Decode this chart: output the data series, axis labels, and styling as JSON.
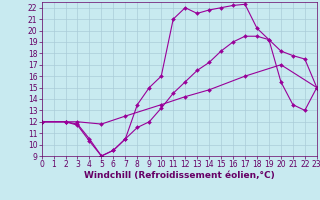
{
  "xlabel": "Windchill (Refroidissement éolien,°C)",
  "xlim": [
    0,
    23
  ],
  "ylim": [
    9,
    22.5
  ],
  "xticks": [
    0,
    1,
    2,
    3,
    4,
    5,
    6,
    7,
    8,
    9,
    10,
    11,
    12,
    13,
    14,
    15,
    16,
    17,
    18,
    19,
    20,
    21,
    22,
    23
  ],
  "yticks": [
    9,
    10,
    11,
    12,
    13,
    14,
    15,
    16,
    17,
    18,
    19,
    20,
    21,
    22
  ],
  "bg_color": "#c8eaf0",
  "line_color": "#990099",
  "line1_x": [
    0,
    2,
    3,
    5,
    7,
    10,
    12,
    14,
    17,
    20,
    23
  ],
  "line1_y": [
    12,
    12,
    12,
    11.8,
    12.5,
    13.5,
    14.2,
    14.8,
    16.0,
    17.0,
    15.0
  ],
  "line2_x": [
    0,
    2,
    3,
    4,
    5,
    6,
    7,
    8,
    9,
    10,
    11,
    12,
    13,
    14,
    15,
    16,
    17,
    18,
    19,
    20,
    21,
    22,
    23
  ],
  "line2_y": [
    12,
    12,
    11.7,
    10.3,
    9.0,
    9.5,
    10.5,
    13.5,
    15.0,
    16.0,
    21.0,
    22.0,
    21.5,
    21.8,
    22.0,
    22.2,
    22.3,
    20.2,
    19.2,
    18.2,
    17.8,
    17.5,
    15.0
  ],
  "line3_x": [
    0,
    2,
    3,
    4,
    5,
    6,
    7,
    8,
    9,
    10,
    11,
    12,
    13,
    14,
    15,
    16,
    17,
    18,
    19,
    20,
    21,
    22,
    23
  ],
  "line3_y": [
    12,
    12,
    11.8,
    10.5,
    9.0,
    9.5,
    10.5,
    11.5,
    12.0,
    13.2,
    14.5,
    15.5,
    16.5,
    17.2,
    18.2,
    19.0,
    19.5,
    19.5,
    19.2,
    15.5,
    13.5,
    13.0,
    15.0
  ],
  "font_color": "#660066",
  "tick_fontsize": 5.5,
  "label_fontsize": 6.5,
  "grid_color": "#aaccd8",
  "marker_size": 2.0,
  "linewidth": 0.8
}
